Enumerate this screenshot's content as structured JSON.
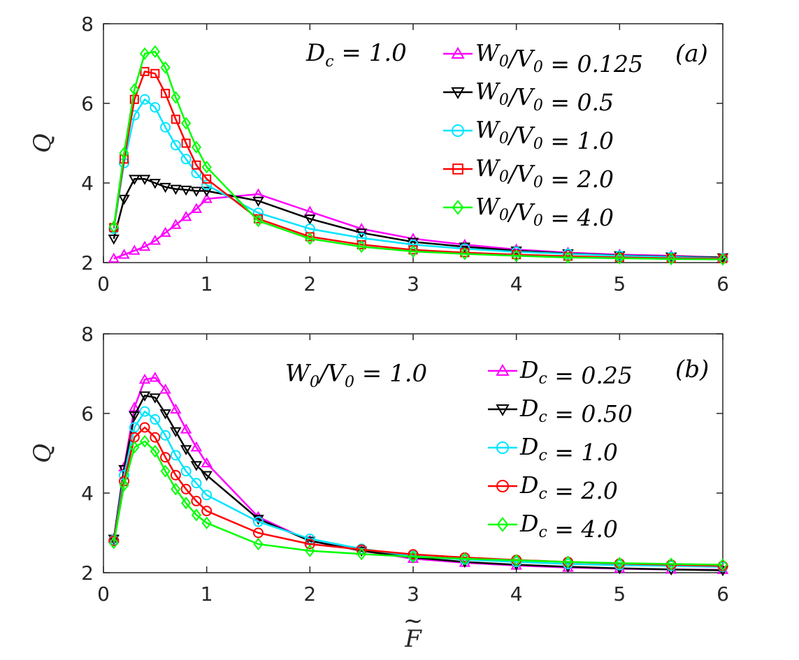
{
  "chart_data": [
    {
      "type": "line",
      "panel_label": "(a)",
      "annotation": "D_c = 1.0",
      "ylabel": "Q",
      "xlim": [
        0,
        6
      ],
      "ylim": [
        2,
        8
      ],
      "xticks": [
        "0",
        "1",
        "2",
        "3",
        "4",
        "5",
        "6"
      ],
      "yticks": [
        "2",
        "4",
        "6",
        "8"
      ],
      "legend_position": "top-right",
      "x": [
        0.1,
        0.2,
        0.3,
        0.4,
        0.5,
        0.6,
        0.7,
        0.8,
        0.9,
        1.0,
        1.5,
        2.0,
        2.5,
        3.0,
        3.5,
        4.0,
        4.5,
        5.0,
        5.5,
        6.0
      ],
      "series": [
        {
          "name": "W_0/V_0 = 0.125",
          "color": "#ff00ff",
          "marker": "triangle-up",
          "values": [
            2.1,
            2.2,
            2.3,
            2.4,
            2.55,
            2.75,
            2.95,
            3.15,
            3.35,
            3.6,
            3.72,
            3.28,
            2.85,
            2.6,
            2.45,
            2.33,
            2.25,
            2.2,
            2.17,
            2.13
          ]
        },
        {
          "name": "W_0/V_0 = 0.5",
          "color": "#000000",
          "marker": "triangle-down",
          "values": [
            2.6,
            3.6,
            4.1,
            4.1,
            4.0,
            3.9,
            3.85,
            3.83,
            3.8,
            3.8,
            3.55,
            3.1,
            2.75,
            2.52,
            2.4,
            2.3,
            2.23,
            2.18,
            2.15,
            2.13
          ]
        },
        {
          "name": "W_0/V_0 = 1.0",
          "color": "#00e5ff",
          "marker": "circle",
          "values": [
            2.85,
            4.5,
            5.7,
            6.1,
            5.9,
            5.4,
            4.95,
            4.6,
            4.25,
            3.95,
            3.25,
            2.85,
            2.62,
            2.45,
            2.35,
            2.27,
            2.22,
            2.17,
            2.14,
            2.11
          ]
        },
        {
          "name": "W_0/V_0 = 2.0",
          "color": "#ff0000",
          "marker": "square",
          "values": [
            2.88,
            4.6,
            6.1,
            6.8,
            6.75,
            6.25,
            5.6,
            5.0,
            4.45,
            4.1,
            3.1,
            2.65,
            2.45,
            2.32,
            2.25,
            2.2,
            2.16,
            2.13,
            2.11,
            2.1
          ]
        },
        {
          "name": "W_0/V_0 = 4.0",
          "color": "#00ff00",
          "marker": "diamond",
          "values": [
            2.9,
            4.75,
            6.35,
            7.25,
            7.3,
            6.9,
            6.15,
            5.5,
            4.9,
            4.4,
            3.05,
            2.6,
            2.4,
            2.28,
            2.22,
            2.17,
            2.13,
            2.11,
            2.09,
            2.08
          ]
        }
      ]
    },
    {
      "type": "line",
      "panel_label": "(b)",
      "annotation": "W_0/V_0 = 1.0",
      "xlabel": "F~",
      "ylabel": "Q",
      "xlim": [
        0,
        6
      ],
      "ylim": [
        2,
        8
      ],
      "xticks": [
        "0",
        "1",
        "2",
        "3",
        "4",
        "5",
        "6"
      ],
      "yticks": [
        "2",
        "4",
        "6",
        "8"
      ],
      "legend_position": "top-right",
      "x": [
        0.1,
        0.2,
        0.3,
        0.4,
        0.5,
        0.6,
        0.7,
        0.8,
        0.9,
        1.0,
        1.5,
        2.0,
        2.5,
        3.0,
        3.5,
        4.0,
        4.5,
        5.0,
        5.5,
        6.0
      ],
      "series": [
        {
          "name": "D_c = 0.25",
          "color": "#ff00ff",
          "marker": "triangle-up",
          "values": [
            2.85,
            4.65,
            6.15,
            6.85,
            6.9,
            6.6,
            6.1,
            5.6,
            5.15,
            4.75,
            3.4,
            2.8,
            2.55,
            2.35,
            2.25,
            2.18,
            2.13,
            2.1,
            2.08,
            2.07
          ]
        },
        {
          "name": "D_c = 0.50",
          "color": "#000000",
          "marker": "triangle-down",
          "values": [
            2.85,
            4.6,
            5.95,
            6.45,
            6.4,
            6.0,
            5.55,
            5.1,
            4.7,
            4.45,
            3.35,
            2.8,
            2.55,
            2.38,
            2.27,
            2.2,
            2.15,
            2.11,
            2.08,
            2.06
          ]
        },
        {
          "name": "D_c = 1.0",
          "color": "#00e5ff",
          "marker": "circle",
          "values": [
            2.82,
            4.45,
            5.65,
            6.05,
            5.85,
            5.45,
            4.95,
            4.55,
            4.25,
            3.95,
            3.28,
            2.85,
            2.6,
            2.42,
            2.33,
            2.27,
            2.22,
            2.19,
            2.17,
            2.15
          ]
        },
        {
          "name": "D_c = 2.0",
          "color": "#ff0000",
          "marker": "circle",
          "values": [
            2.8,
            4.3,
            5.4,
            5.65,
            5.4,
            4.9,
            4.45,
            4.1,
            3.8,
            3.55,
            3.0,
            2.72,
            2.58,
            2.46,
            2.38,
            2.32,
            2.27,
            2.23,
            2.2,
            2.17
          ]
        },
        {
          "name": "D_c = 4.0",
          "color": "#00ff00",
          "marker": "diamond",
          "values": [
            2.75,
            4.2,
            5.15,
            5.3,
            5.05,
            4.55,
            4.1,
            3.75,
            3.45,
            3.25,
            2.72,
            2.55,
            2.47,
            2.4,
            2.35,
            2.31,
            2.27,
            2.24,
            2.22,
            2.2
          ]
        }
      ]
    }
  ]
}
